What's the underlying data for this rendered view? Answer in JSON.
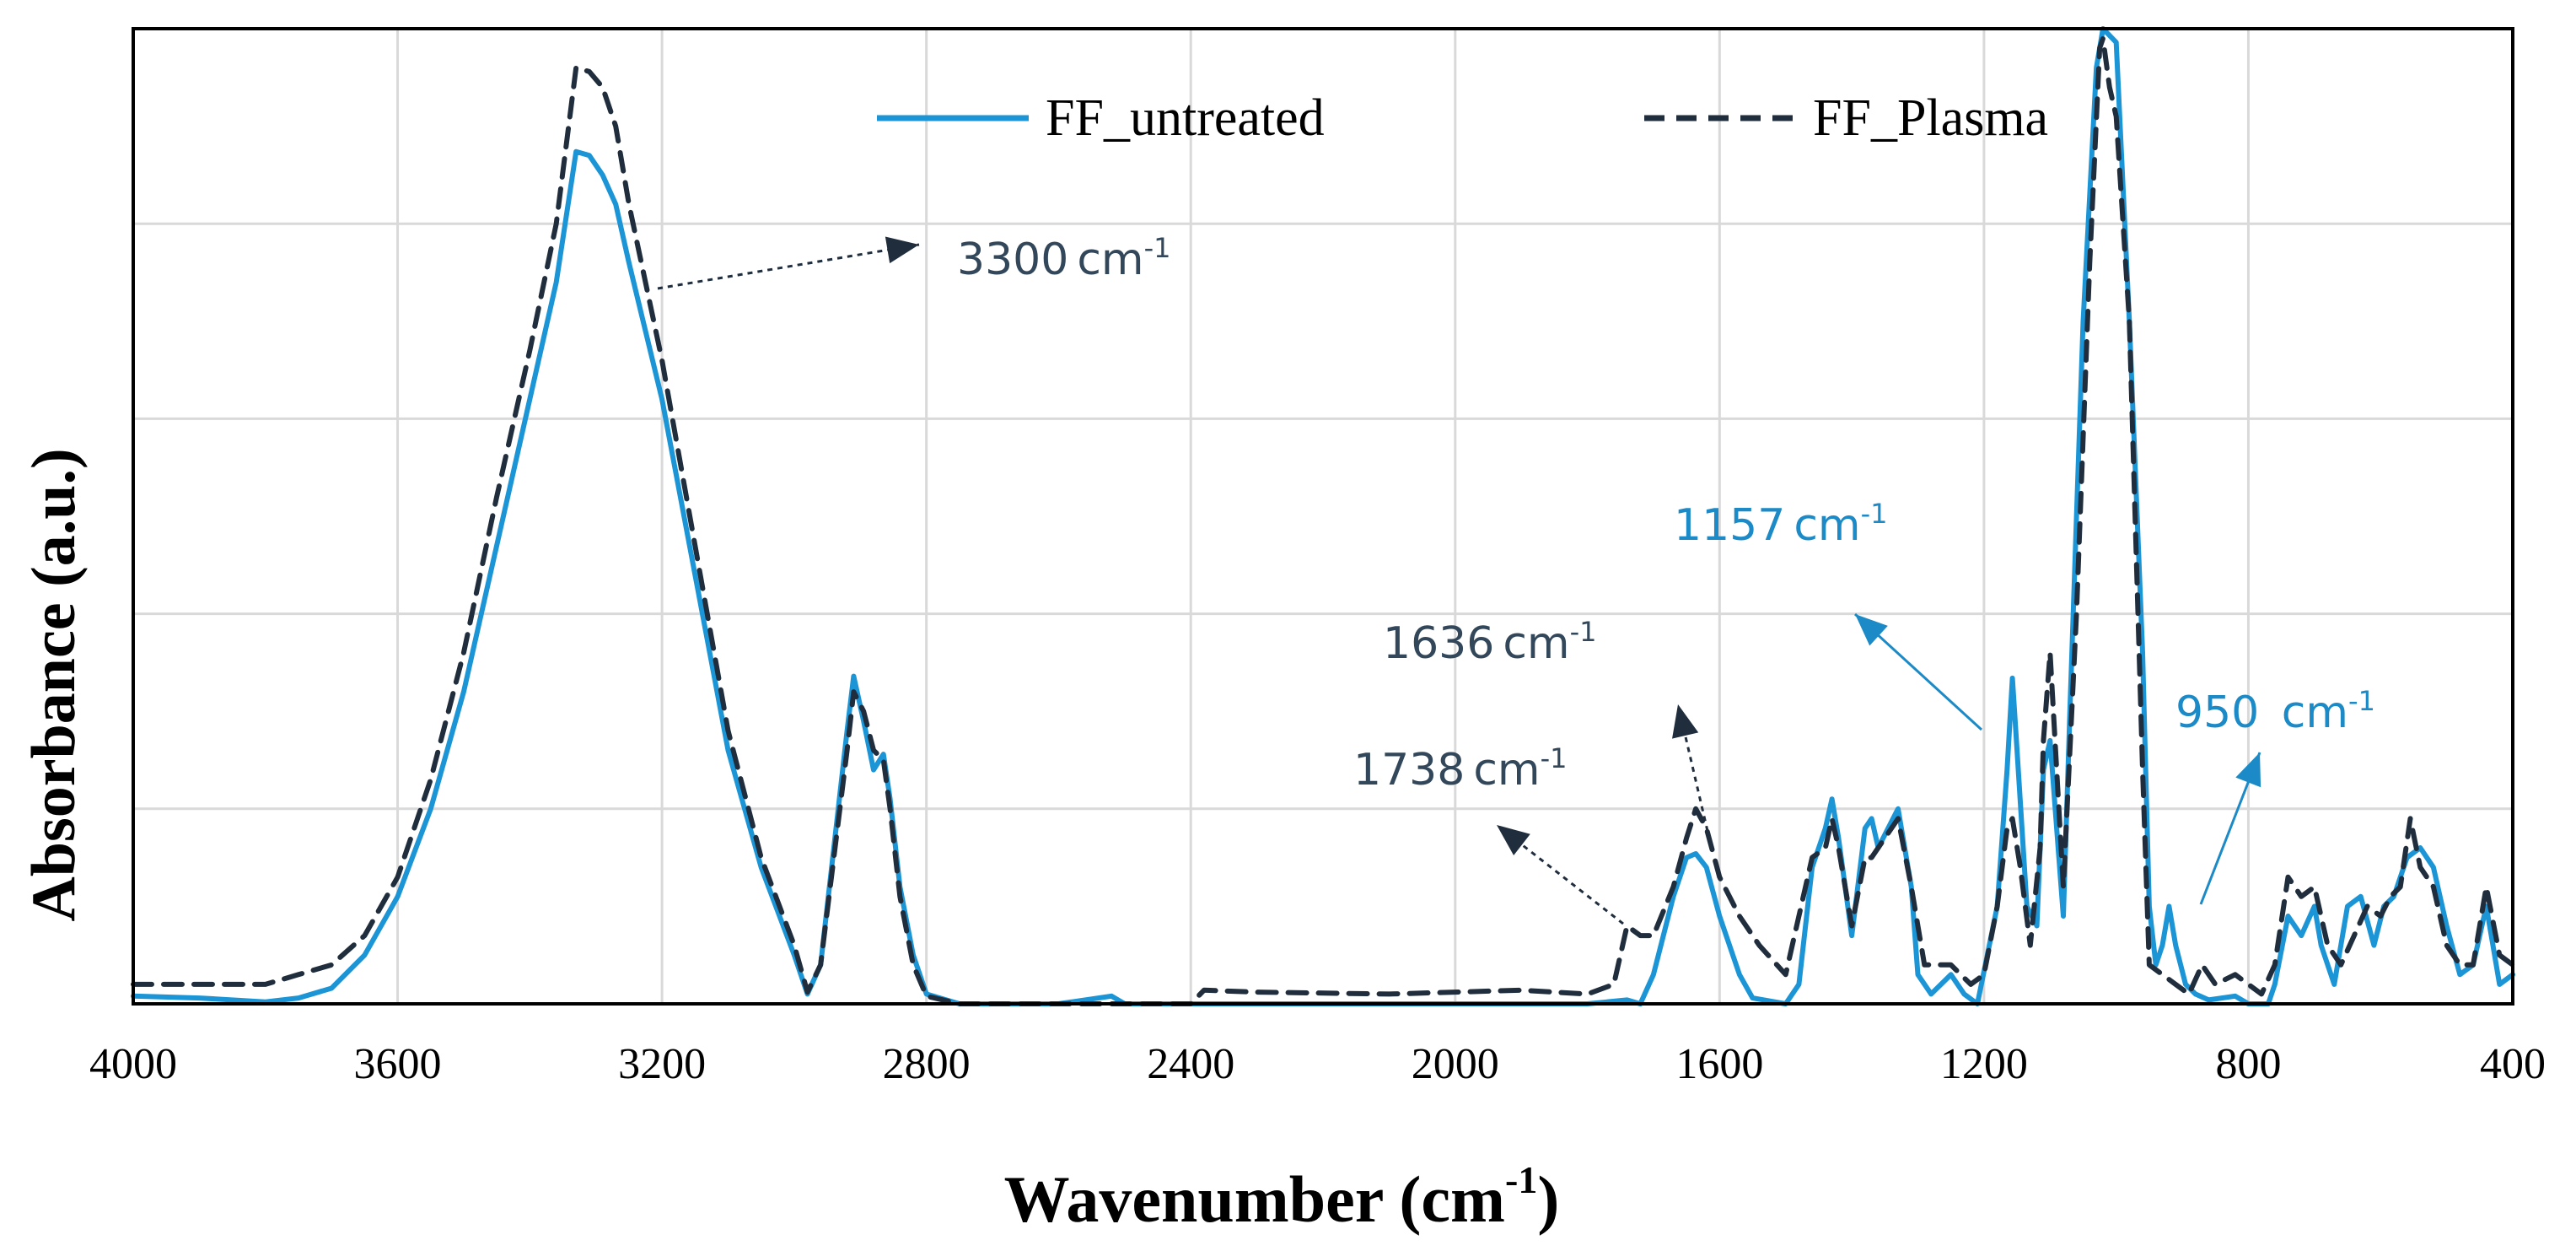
{
  "chart_data": {
    "type": "line",
    "title": "",
    "xlabel": "Wavenumber (cm",
    "xlabel_sup": "-1",
    "xlabel_close": ")",
    "ylabel": "Absorbance (a.u.)",
    "xlim": [
      4000,
      400
    ],
    "ylim": [
      0,
      5
    ],
    "x_reversed": true,
    "grid": true,
    "y_tick_labels_shown": false,
    "xticks": [
      4000,
      3600,
      3200,
      2800,
      2400,
      2000,
      1600,
      1200,
      800,
      400
    ],
    "xtick_labels": [
      "4000",
      "3600",
      "3200",
      "2800",
      "2400",
      "2000",
      "1600",
      "1200",
      "800",
      "400"
    ],
    "yticks": [
      0,
      1,
      2,
      3,
      4,
      5
    ],
    "legend_position": "top-center",
    "series": [
      {
        "name": "FF_untreated",
        "color": "#1b95d6",
        "dash": "solid",
        "points": [
          [
            4000,
            0.04
          ],
          [
            3900,
            0.03
          ],
          [
            3800,
            0.01
          ],
          [
            3750,
            0.03
          ],
          [
            3700,
            0.08
          ],
          [
            3650,
            0.25
          ],
          [
            3600,
            0.55
          ],
          [
            3550,
            1.0
          ],
          [
            3500,
            1.6
          ],
          [
            3450,
            2.35
          ],
          [
            3400,
            3.1
          ],
          [
            3360,
            3.7
          ],
          [
            3330,
            4.37
          ],
          [
            3310,
            4.35
          ],
          [
            3290,
            4.25
          ],
          [
            3270,
            4.1
          ],
          [
            3250,
            3.8
          ],
          [
            3200,
            3.1
          ],
          [
            3150,
            2.2
          ],
          [
            3100,
            1.3
          ],
          [
            3050,
            0.7
          ],
          [
            3000,
            0.25
          ],
          [
            2980,
            0.05
          ],
          [
            2960,
            0.2
          ],
          [
            2940,
            0.8
          ],
          [
            2920,
            1.4
          ],
          [
            2910,
            1.68
          ],
          [
            2895,
            1.45
          ],
          [
            2880,
            1.2
          ],
          [
            2865,
            1.28
          ],
          [
            2855,
            1.05
          ],
          [
            2840,
            0.6
          ],
          [
            2820,
            0.25
          ],
          [
            2800,
            0.05
          ],
          [
            2750,
            0.0
          ],
          [
            2600,
            0.0
          ],
          [
            2520,
            0.04
          ],
          [
            2500,
            0.0
          ],
          [
            2300,
            0.0
          ],
          [
            2000,
            0.0
          ],
          [
            1800,
            0.0
          ],
          [
            1740,
            0.02
          ],
          [
            1720,
            0.0
          ],
          [
            1700,
            0.15
          ],
          [
            1670,
            0.55
          ],
          [
            1650,
            0.75
          ],
          [
            1636,
            0.77
          ],
          [
            1620,
            0.7
          ],
          [
            1600,
            0.45
          ],
          [
            1570,
            0.15
          ],
          [
            1550,
            0.03
          ],
          [
            1500,
            0.0
          ],
          [
            1480,
            0.1
          ],
          [
            1460,
            0.7
          ],
          [
            1440,
            0.9
          ],
          [
            1430,
            1.05
          ],
          [
            1420,
            0.85
          ],
          [
            1400,
            0.35
          ],
          [
            1380,
            0.9
          ],
          [
            1370,
            0.95
          ],
          [
            1360,
            0.8
          ],
          [
            1345,
            0.9
          ],
          [
            1330,
            1.0
          ],
          [
            1310,
            0.6
          ],
          [
            1300,
            0.15
          ],
          [
            1280,
            0.05
          ],
          [
            1250,
            0.15
          ],
          [
            1230,
            0.05
          ],
          [
            1210,
            0.0
          ],
          [
            1180,
            0.5
          ],
          [
            1165,
            1.2
          ],
          [
            1157,
            1.67
          ],
          [
            1150,
            1.3
          ],
          [
            1135,
            0.5
          ],
          [
            1120,
            0.4
          ],
          [
            1110,
            1.2
          ],
          [
            1100,
            1.35
          ],
          [
            1090,
            0.9
          ],
          [
            1080,
            0.45
          ],
          [
            1070,
            1.5
          ],
          [
            1050,
            3.5
          ],
          [
            1030,
            4.8
          ],
          [
            1020,
            5.0
          ],
          [
            1000,
            4.93
          ],
          [
            980,
            3.5
          ],
          [
            960,
            1.8
          ],
          [
            950,
            0.5
          ],
          [
            940,
            0.2
          ],
          [
            930,
            0.3
          ],
          [
            920,
            0.5
          ],
          [
            910,
            0.3
          ],
          [
            895,
            0.1
          ],
          [
            880,
            0.05
          ],
          [
            860,
            0.02
          ],
          [
            820,
            0.04
          ],
          [
            800,
            0.0
          ],
          [
            770,
            0.0
          ],
          [
            760,
            0.1
          ],
          [
            740,
            0.45
          ],
          [
            720,
            0.35
          ],
          [
            700,
            0.5
          ],
          [
            690,
            0.3
          ],
          [
            670,
            0.1
          ],
          [
            650,
            0.5
          ],
          [
            630,
            0.55
          ],
          [
            610,
            0.3
          ],
          [
            595,
            0.5
          ],
          [
            580,
            0.55
          ],
          [
            560,
            0.75
          ],
          [
            540,
            0.8
          ],
          [
            520,
            0.7
          ],
          [
            500,
            0.4
          ],
          [
            480,
            0.15
          ],
          [
            460,
            0.2
          ],
          [
            440,
            0.5
          ],
          [
            430,
            0.3
          ],
          [
            420,
            0.1
          ],
          [
            400,
            0.15
          ]
        ]
      },
      {
        "name": "FF_Plasma",
        "color": "#1f2d3d",
        "dash": "dashed",
        "points": [
          [
            4000,
            0.1
          ],
          [
            3900,
            0.1
          ],
          [
            3800,
            0.1
          ],
          [
            3750,
            0.15
          ],
          [
            3700,
            0.2
          ],
          [
            3650,
            0.35
          ],
          [
            3600,
            0.65
          ],
          [
            3550,
            1.15
          ],
          [
            3500,
            1.8
          ],
          [
            3450,
            2.6
          ],
          [
            3400,
            3.35
          ],
          [
            3360,
            4.0
          ],
          [
            3330,
            4.8
          ],
          [
            3310,
            4.78
          ],
          [
            3290,
            4.7
          ],
          [
            3270,
            4.5
          ],
          [
            3250,
            4.1
          ],
          [
            3200,
            3.3
          ],
          [
            3150,
            2.35
          ],
          [
            3100,
            1.4
          ],
          [
            3050,
            0.75
          ],
          [
            3000,
            0.3
          ],
          [
            2980,
            0.06
          ],
          [
            2960,
            0.2
          ],
          [
            2940,
            0.75
          ],
          [
            2920,
            1.3
          ],
          [
            2910,
            1.6
          ],
          [
            2895,
            1.5
          ],
          [
            2880,
            1.3
          ],
          [
            2865,
            1.25
          ],
          [
            2855,
            1.0
          ],
          [
            2840,
            0.55
          ],
          [
            2820,
            0.2
          ],
          [
            2800,
            0.04
          ],
          [
            2750,
            0.0
          ],
          [
            2600,
            0.0
          ],
          [
            2400,
            0.0
          ],
          [
            2380,
            0.07
          ],
          [
            2300,
            0.06
          ],
          [
            2100,
            0.05
          ],
          [
            1900,
            0.07
          ],
          [
            1800,
            0.05
          ],
          [
            1760,
            0.1
          ],
          [
            1740,
            0.4
          ],
          [
            1720,
            0.35
          ],
          [
            1700,
            0.35
          ],
          [
            1670,
            0.6
          ],
          [
            1650,
            0.85
          ],
          [
            1636,
            1.0
          ],
          [
            1620,
            0.9
          ],
          [
            1600,
            0.65
          ],
          [
            1570,
            0.45
          ],
          [
            1540,
            0.3
          ],
          [
            1500,
            0.15
          ],
          [
            1480,
            0.45
          ],
          [
            1460,
            0.75
          ],
          [
            1440,
            0.8
          ],
          [
            1430,
            0.95
          ],
          [
            1420,
            0.8
          ],
          [
            1400,
            0.4
          ],
          [
            1380,
            0.75
          ],
          [
            1370,
            0.75
          ],
          [
            1350,
            0.85
          ],
          [
            1330,
            0.95
          ],
          [
            1310,
            0.6
          ],
          [
            1290,
            0.2
          ],
          [
            1250,
            0.2
          ],
          [
            1220,
            0.1
          ],
          [
            1200,
            0.15
          ],
          [
            1180,
            0.5
          ],
          [
            1165,
            0.9
          ],
          [
            1157,
            0.95
          ],
          [
            1145,
            0.7
          ],
          [
            1130,
            0.3
          ],
          [
            1115,
            0.8
          ],
          [
            1110,
            1.35
          ],
          [
            1100,
            1.8
          ],
          [
            1090,
            1.2
          ],
          [
            1080,
            0.6
          ],
          [
            1060,
            2.0
          ],
          [
            1040,
            3.8
          ],
          [
            1025,
            4.9
          ],
          [
            1020,
            4.95
          ],
          [
            1010,
            4.7
          ],
          [
            1000,
            4.55
          ],
          [
            980,
            3.5
          ],
          [
            960,
            1.2
          ],
          [
            950,
            0.2
          ],
          [
            930,
            0.15
          ],
          [
            910,
            0.1
          ],
          [
            890,
            0.05
          ],
          [
            870,
            0.2
          ],
          [
            850,
            0.1
          ],
          [
            820,
            0.15
          ],
          [
            800,
            0.1
          ],
          [
            780,
            0.05
          ],
          [
            760,
            0.2
          ],
          [
            740,
            0.65
          ],
          [
            720,
            0.55
          ],
          [
            700,
            0.6
          ],
          [
            680,
            0.3
          ],
          [
            660,
            0.2
          ],
          [
            640,
            0.35
          ],
          [
            620,
            0.5
          ],
          [
            600,
            0.45
          ],
          [
            585,
            0.55
          ],
          [
            570,
            0.6
          ],
          [
            555,
            0.95
          ],
          [
            540,
            0.7
          ],
          [
            520,
            0.6
          ],
          [
            500,
            0.3
          ],
          [
            480,
            0.2
          ],
          [
            460,
            0.2
          ],
          [
            440,
            0.6
          ],
          [
            420,
            0.25
          ],
          [
            400,
            0.2
          ]
        ]
      }
    ],
    "annotations": [
      {
        "id": "ann-3300",
        "number": "3300",
        "unit": "cm",
        "sup": "-1",
        "color": "#33475b",
        "wavenumber": 3300,
        "style": "dotted"
      },
      {
        "id": "ann-1738",
        "number": "1738",
        "unit": "cm",
        "sup": "-1",
        "color": "#33475b",
        "wavenumber": 1738,
        "style": "dotted"
      },
      {
        "id": "ann-1636",
        "number": "1636",
        "unit": "cm",
        "sup": "-1",
        "color": "#33475b",
        "wavenumber": 1636,
        "style": "dotted"
      },
      {
        "id": "ann-1157",
        "number": "1157",
        "unit": "cm",
        "sup": "-1",
        "color": "#1b8ac6",
        "wavenumber": 1157,
        "style": "solid"
      },
      {
        "id": "ann-950",
        "number": "950 ",
        "unit": "cm",
        "sup": "-1",
        "color": "#1b8ac6",
        "wavenumber": 950,
        "style": "solid"
      }
    ]
  }
}
